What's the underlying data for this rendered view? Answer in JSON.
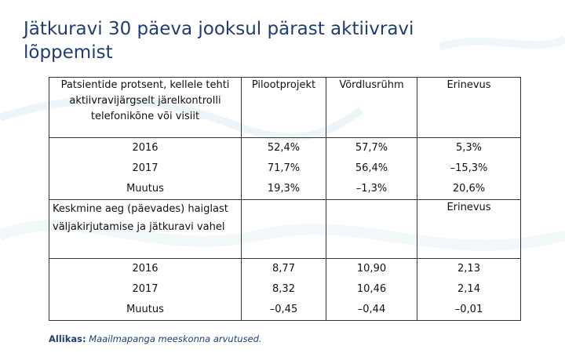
{
  "title": "Jätkuravi 30 päeva jooksul pärast aktiivravi lõppemist",
  "table1": {
    "header": {
      "col0": "Patsientide protsent, kellele tehti aktiivravijärgselt järelkontrolli telefonikõne või visiit",
      "col1": "Pilootprojekt",
      "col2": "Võrdlusrühm",
      "col3": "Erinevus"
    },
    "rows": [
      {
        "label": "2016",
        "pilot": "52,4%",
        "control": "57,7%",
        "diff": "5,3%"
      },
      {
        "label": "2017",
        "pilot": "71,7%",
        "control": "56,4%",
        "diff": "–15,3%"
      },
      {
        "label": "Muutus",
        "pilot": "19,3%",
        "control": "–1,3%",
        "diff": "20,6%"
      }
    ]
  },
  "table2": {
    "header": {
      "col0": "Keskmine aeg (päevades) haiglast väljakirjutamise ja jätkuravi vahel",
      "col3": "Erinevus"
    },
    "rows": [
      {
        "label": "2016",
        "pilot": "8,77",
        "control": "10,90",
        "diff": "2,13"
      },
      {
        "label": "2017",
        "pilot": "8,32",
        "control": "10,46",
        "diff": "2,14"
      },
      {
        "label": "Muutus",
        "pilot": "–0,45",
        "control": "–0,44",
        "diff": "–0,01"
      }
    ]
  },
  "source": {
    "label": "Allikas:",
    "text": "Maailmapanga meeskonna arvutused."
  }
}
